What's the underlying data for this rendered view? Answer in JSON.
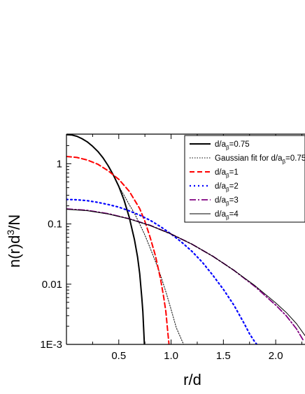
{
  "chart_data": {
    "type": "line",
    "xlabel": "r/d",
    "ylabel": "n(r)d³/N",
    "ylabel_parts": {
      "base": "n(r)d",
      "sup": "3",
      "tail": "/N"
    },
    "xlim": [
      0,
      2.28
    ],
    "ylim": [
      0.001,
      3.1
    ],
    "y_scale": "log",
    "grid": false,
    "legend_position": "top-right",
    "x_ticks": [
      0.5,
      1.0,
      1.5,
      2.0
    ],
    "x_tick_labels": [
      "0.5",
      "1.0",
      "1.5",
      "2.0"
    ],
    "y_ticks": [
      0.001,
      0.01,
      0.1,
      1
    ],
    "y_tick_labels": [
      "1E-3",
      "0.01",
      "0.1",
      "1"
    ],
    "series": [
      {
        "name": "d/aβ=0.75",
        "legend": {
          "pre": "d/a",
          "sub": "β",
          "post": "=0.75"
        },
        "color": "#000000",
        "style": "solid-thick",
        "x": [
          0,
          0.05,
          0.1,
          0.15,
          0.2,
          0.25,
          0.3,
          0.35,
          0.4,
          0.45,
          0.5,
          0.55,
          0.6,
          0.65,
          0.68,
          0.7,
          0.72,
          0.73,
          0.74,
          0.745
        ],
        "y": [
          3.05,
          3.0,
          2.85,
          2.6,
          2.3,
          1.95,
          1.6,
          1.25,
          0.92,
          0.64,
          0.42,
          0.25,
          0.13,
          0.055,
          0.028,
          0.015,
          0.006,
          0.0035,
          0.0015,
          0.001
        ]
      },
      {
        "name": "Gaussian fit for d/aβ=0.75",
        "legend": {
          "pre": "Gaussian fit for d/a",
          "sub": "β",
          "post": "=0.75"
        },
        "color": "#000000",
        "style": "dotted-thin",
        "x": [
          0.5,
          0.55,
          0.6,
          0.65,
          0.7,
          0.75,
          0.8,
          0.85,
          0.9,
          0.95,
          1.0,
          1.05,
          1.1,
          1.12
        ],
        "y": [
          0.42,
          0.3,
          0.21,
          0.15,
          0.1,
          0.065,
          0.04,
          0.024,
          0.014,
          0.0075,
          0.0038,
          0.0019,
          0.0012,
          0.001
        ]
      },
      {
        "name": "d/aβ=1",
        "legend": {
          "pre": "d/a",
          "sub": "β",
          "post": "=1"
        },
        "color": "#ff0000",
        "style": "dashed",
        "x": [
          0,
          0.1,
          0.2,
          0.3,
          0.4,
          0.5,
          0.6,
          0.7,
          0.75,
          0.8,
          0.85,
          0.9,
          0.93,
          0.95,
          0.97,
          0.98
        ],
        "y": [
          1.32,
          1.27,
          1.15,
          0.98,
          0.76,
          0.55,
          0.35,
          0.18,
          0.11,
          0.06,
          0.03,
          0.012,
          0.006,
          0.0035,
          0.0015,
          0.001
        ]
      },
      {
        "name": "d/aβ=2",
        "legend": {
          "pre": "d/a",
          "sub": "β",
          "post": "=2"
        },
        "color": "#0000ff",
        "style": "dotted",
        "x": [
          0,
          0.1,
          0.2,
          0.3,
          0.4,
          0.5,
          0.6,
          0.7,
          0.8,
          0.9,
          1.0,
          1.1,
          1.2,
          1.3,
          1.4,
          1.5,
          1.6,
          1.7,
          1.75,
          1.8,
          1.82
        ],
        "y": [
          0.255,
          0.252,
          0.243,
          0.228,
          0.21,
          0.19,
          0.165,
          0.14,
          0.115,
          0.09,
          0.068,
          0.05,
          0.035,
          0.023,
          0.014,
          0.0082,
          0.0045,
          0.0022,
          0.0015,
          0.0011,
          0.001
        ]
      },
      {
        "name": "d/aβ=3",
        "legend": {
          "pre": "d/a",
          "sub": "β",
          "post": "=3"
        },
        "color": "#800080",
        "style": "dashdot",
        "x": [
          0,
          0.2,
          0.4,
          0.6,
          0.8,
          1.0,
          1.2,
          1.4,
          1.6,
          1.8,
          2.0,
          2.1,
          2.2,
          2.26
        ],
        "y": [
          0.178,
          0.168,
          0.148,
          0.122,
          0.095,
          0.068,
          0.046,
          0.029,
          0.017,
          0.0092,
          0.0045,
          0.003,
          0.0018,
          0.0012
        ]
      },
      {
        "name": "d/aβ=4",
        "legend": {
          "pre": "d/a",
          "sub": "β",
          "post": "=4"
        },
        "color": "#000000",
        "style": "solid-thin",
        "x": [
          0,
          0.2,
          0.4,
          0.6,
          0.8,
          1.0,
          1.2,
          1.4,
          1.6,
          1.8,
          2.0,
          2.1,
          2.2,
          2.28
        ],
        "y": [
          0.175,
          0.166,
          0.146,
          0.121,
          0.094,
          0.068,
          0.046,
          0.029,
          0.017,
          0.0095,
          0.0049,
          0.0034,
          0.0022,
          0.0014
        ]
      }
    ]
  }
}
